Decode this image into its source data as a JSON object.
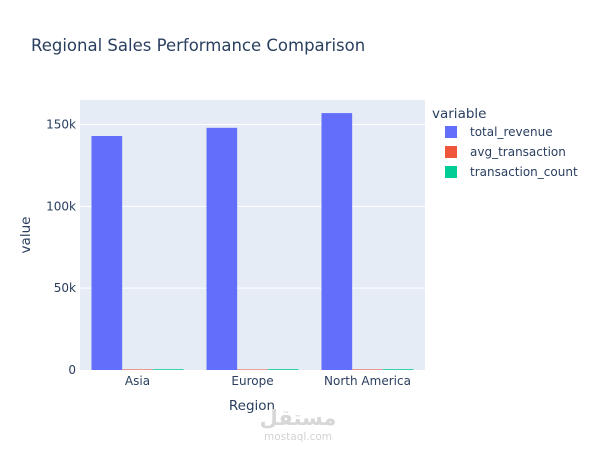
{
  "chart_data": {
    "type": "bar",
    "title": "Regional Sales Performance Comparison",
    "xlabel": "Region",
    "ylabel": "value",
    "categories": [
      "Asia",
      "Europe",
      "North America"
    ],
    "series": [
      {
        "name": "total_revenue",
        "values": [
          143000,
          148000,
          157000
        ],
        "color": "#636efa"
      },
      {
        "name": "avg_transaction",
        "values": [
          320,
          310,
          330
        ],
        "color": "#ef553b"
      },
      {
        "name": "transaction_count",
        "values": [
          450,
          480,
          470
        ],
        "color": "#00cc96"
      }
    ],
    "ylim": [
      0,
      165000
    ],
    "yticks": [
      0,
      50000,
      100000,
      150000
    ],
    "ytick_labels": [
      "0",
      "50k",
      "100k",
      "150k"
    ],
    "legend": {
      "title": "variable",
      "placement": "right"
    },
    "grid": true,
    "barmode": "group"
  },
  "watermark": {
    "arabic": "مستقل",
    "latin": "mostaql.com"
  }
}
